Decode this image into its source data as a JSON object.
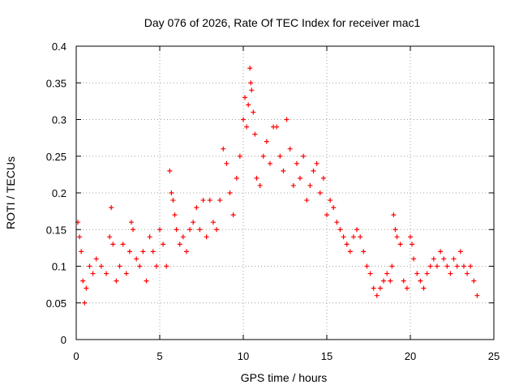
{
  "chart_data": {
    "type": "scatter",
    "title": "Day 076 of 2026, Rate Of TEC Index for receiver mac1",
    "xlabel": "GPS time / hours",
    "ylabel": "ROTI / TECUs",
    "xlim": [
      0,
      25
    ],
    "ylim": [
      0,
      0.4
    ],
    "x_ticks": [
      "0",
      "5",
      "10",
      "15",
      "20",
      "25"
    ],
    "y_ticks": [
      "0",
      "0.05",
      "0.1",
      "0.15",
      "0.2",
      "0.25",
      "0.3",
      "0.35",
      "0.4"
    ],
    "grid": true,
    "marker": "plus",
    "series_color": "#ff0000",
    "series": [
      {
        "x": [
          0.1,
          0.2,
          0.3,
          0.4,
          0.5,
          0.6,
          0.8,
          1.0,
          1.2,
          1.5,
          1.8,
          2.0,
          2.1,
          2.2,
          2.4,
          2.6,
          2.8,
          3.0,
          3.2,
          3.3,
          3.4,
          3.6,
          3.8,
          4.0,
          4.2,
          4.4,
          4.6,
          4.8,
          5.0,
          5.2,
          5.4,
          5.6,
          5.7,
          5.8,
          5.9,
          6.0,
          6.2,
          6.4,
          6.6,
          6.8,
          7.0,
          7.2,
          7.4,
          7.6,
          7.8,
          8.0,
          8.2,
          8.4,
          8.6,
          8.8,
          9.0,
          9.2,
          9.4,
          9.6,
          9.8,
          10.0,
          10.1,
          10.2,
          10.3,
          10.4,
          10.45,
          10.5,
          10.6,
          10.7,
          10.8,
          11.0,
          11.2,
          11.4,
          11.6,
          11.8,
          12.0,
          12.2,
          12.4,
          12.6,
          12.8,
          13.0,
          13.2,
          13.4,
          13.6,
          13.8,
          14.0,
          14.2,
          14.4,
          14.6,
          14.8,
          15.0,
          15.2,
          15.4,
          15.6,
          15.8,
          16.0,
          16.2,
          16.4,
          16.6,
          16.8,
          17.0,
          17.2,
          17.4,
          17.6,
          17.8,
          18.0,
          18.2,
          18.4,
          18.6,
          18.8,
          18.9,
          19.0,
          19.1,
          19.2,
          19.4,
          19.6,
          19.8,
          20.0,
          20.1,
          20.2,
          20.4,
          20.6,
          20.8,
          21.0,
          21.2,
          21.4,
          21.6,
          21.8,
          22.0,
          22.2,
          22.4,
          22.6,
          22.8,
          23.0,
          23.2,
          23.4,
          23.6,
          23.8,
          24.0
        ],
        "y": [
          0.16,
          0.14,
          0.12,
          0.08,
          0.05,
          0.07,
          0.1,
          0.09,
          0.11,
          0.1,
          0.09,
          0.14,
          0.18,
          0.13,
          0.08,
          0.1,
          0.13,
          0.09,
          0.12,
          0.16,
          0.15,
          0.11,
          0.1,
          0.12,
          0.08,
          0.14,
          0.12,
          0.1,
          0.15,
          0.13,
          0.1,
          0.23,
          0.2,
          0.19,
          0.17,
          0.15,
          0.13,
          0.14,
          0.12,
          0.15,
          0.16,
          0.18,
          0.15,
          0.19,
          0.14,
          0.19,
          0.16,
          0.15,
          0.19,
          0.26,
          0.24,
          0.2,
          0.17,
          0.22,
          0.25,
          0.3,
          0.33,
          0.29,
          0.32,
          0.37,
          0.35,
          0.34,
          0.31,
          0.28,
          0.22,
          0.21,
          0.25,
          0.27,
          0.24,
          0.29,
          0.29,
          0.25,
          0.23,
          0.3,
          0.26,
          0.21,
          0.24,
          0.22,
          0.25,
          0.19,
          0.21,
          0.23,
          0.24,
          0.2,
          0.22,
          0.17,
          0.19,
          0.18,
          0.16,
          0.15,
          0.14,
          0.13,
          0.12,
          0.14,
          0.15,
          0.14,
          0.12,
          0.1,
          0.09,
          0.07,
          0.06,
          0.07,
          0.08,
          0.09,
          0.08,
          0.1,
          0.17,
          0.15,
          0.14,
          0.13,
          0.08,
          0.07,
          0.14,
          0.13,
          0.11,
          0.09,
          0.08,
          0.07,
          0.09,
          0.1,
          0.11,
          0.1,
          0.12,
          0.11,
          0.1,
          0.09,
          0.11,
          0.1,
          0.12,
          0.1,
          0.09,
          0.1,
          0.08,
          0.06
        ]
      }
    ]
  }
}
